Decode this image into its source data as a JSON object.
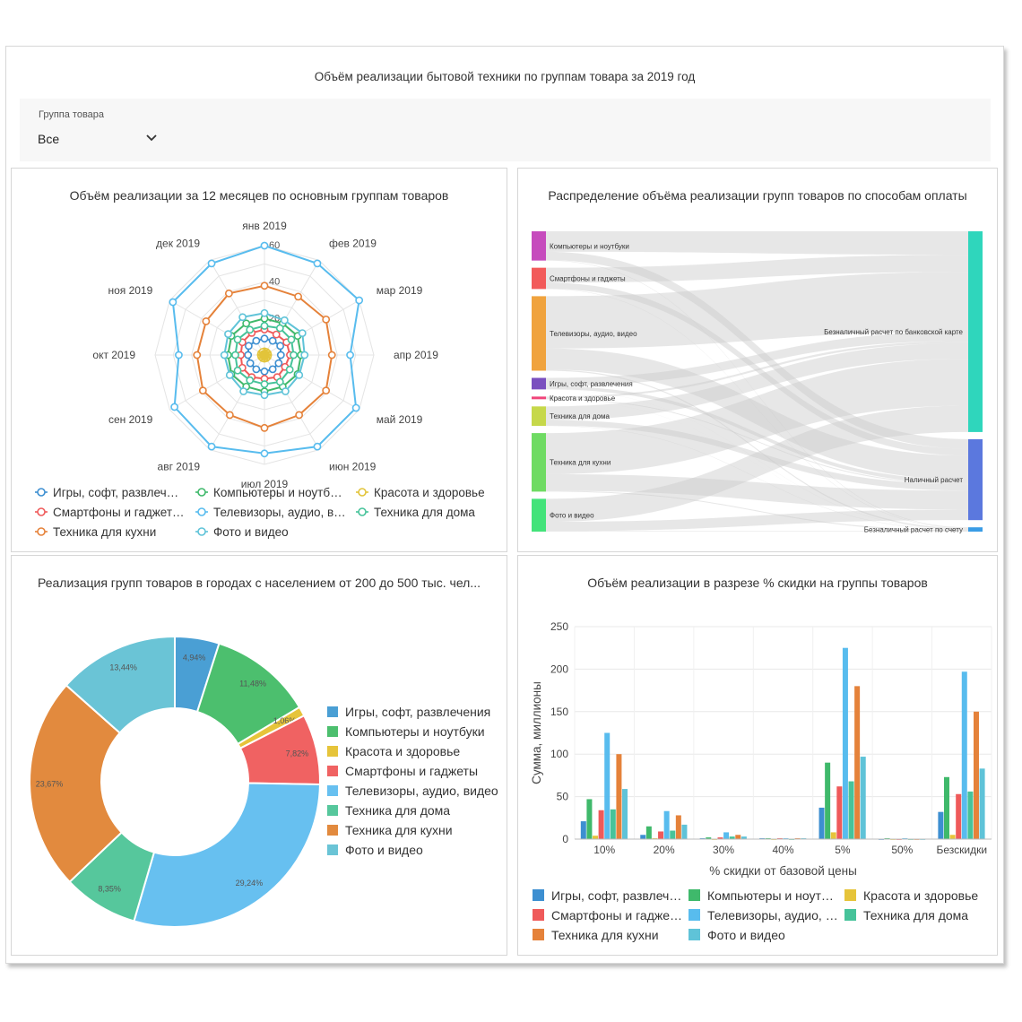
{
  "dashboard": {
    "title": "Объём реализации бытовой техники по группам товара за 2019 год"
  },
  "filter": {
    "label": "Группа товара",
    "value": "Все"
  },
  "colors": {
    "games": "#3d8fd1",
    "computers": "#3fb96b",
    "beauty": "#e2c43a",
    "smartphones": "#ef5a5a",
    "tv": "#58bcee",
    "home": "#46c39a",
    "kitchen": "#e5823a",
    "photo": "#5fc3d8"
  },
  "panels": {
    "radar": {
      "title": "Объём реализации за 12 месяцев по основным группам товаров"
    },
    "sankey": {
      "title": "Распределение объёма реализации групп товаров по способам оплаты"
    },
    "donut": {
      "title": "Реализация групп товаров в городах с населением от 200 до 500 тыс. чел..."
    },
    "bars": {
      "title": "Объём реализации в разрезе % скидки на группы товаров"
    }
  },
  "chart_data": [
    {
      "type": "radar",
      "title": "Объём реализации за 12 месяцев по основным группам товаров",
      "categories": [
        "янв 2019",
        "фев 2019",
        "мар 2019",
        "апр 2019",
        "май 2019",
        "июн 2019",
        "июл 2019",
        "авг 2019",
        "сен 2019",
        "окт 2019",
        "ноя 2019",
        "дек 2019"
      ],
      "axis_ticks": [
        "20",
        "40",
        "60"
      ],
      "rmax": 60,
      "series": [
        {
          "name": "Игры, софт, развлеч…",
          "color": "#3d8fd1",
          "values": [
            9,
            9,
            10,
            9,
            9,
            9,
            9,
            9,
            9,
            9,
            10,
            9
          ]
        },
        {
          "name": "Компьютеры и ноутб…",
          "color": "#3fb96b",
          "values": [
            20,
            20,
            21,
            20,
            21,
            20,
            20,
            20,
            21,
            20,
            21,
            20
          ]
        },
        {
          "name": "Красота и здоровье",
          "color": "#e2c43a",
          "values": [
            2,
            2,
            2,
            2,
            2,
            2,
            2,
            2,
            2,
            2,
            2,
            2
          ]
        },
        {
          "name": "Смартфоны и гаджет…",
          "color": "#ef5a5a",
          "values": [
            14,
            13,
            14,
            14,
            13,
            14,
            13,
            14,
            14,
            13,
            14,
            14
          ]
        },
        {
          "name": "Телевизоры, аудио, в…",
          "color": "#58bcee",
          "values": [
            60,
            58,
            60,
            47,
            58,
            58,
            54,
            58,
            57,
            47,
            58,
            58
          ]
        },
        {
          "name": "Техника для дома",
          "color": "#46c39a",
          "values": [
            16,
            17,
            17,
            16,
            16,
            17,
            16,
            16,
            17,
            16,
            17,
            16
          ]
        },
        {
          "name": "Техника для кухни",
          "color": "#e5823a",
          "values": [
            38,
            37,
            39,
            37,
            39,
            38,
            40,
            38,
            39,
            37,
            37,
            39
          ]
        },
        {
          "name": "Фото и видео",
          "color": "#5fc3d8",
          "values": [
            23,
            22,
            24,
            22,
            22,
            23,
            22,
            23,
            22,
            22,
            23,
            24
          ]
        }
      ]
    },
    {
      "type": "sankey",
      "title": "Распределение объёма реализации групп товаров по способам оплаты",
      "sources": [
        {
          "name": "Компьютеры и ноутбуки",
          "color": "#c64bbd",
          "value": 33
        },
        {
          "name": "Смартфоны и гаджеты",
          "color": "#f25a5a",
          "value": 24
        },
        {
          "name": "Телевизоры, аудио, видео",
          "color": "#f0a33e",
          "value": 84
        },
        {
          "name": "Игры, софт, развлечения",
          "color": "#7a4fbf",
          "value": 13
        },
        {
          "name": "Красота и здоровье",
          "color": "#f0457b",
          "value": 3
        },
        {
          "name": "Техника для дома",
          "color": "#c6d84a",
          "value": 22
        },
        {
          "name": "Техника для кухни",
          "color": "#6fdb63",
          "value": 66
        },
        {
          "name": "Фото и видео",
          "color": "#43e37a",
          "value": 37
        }
      ],
      "targets": [
        {
          "name": "Безналичный расчет по банковской карте",
          "color": "#2fd6bc",
          "value": 186
        },
        {
          "name": "Наличный расчет",
          "color": "#5b78de",
          "value": 75
        },
        {
          "name": "Безналичный расчет по счету",
          "color": "#3a9ce6",
          "value": 4
        }
      ]
    },
    {
      "type": "pie",
      "title": "Реализация групп товаров в городах с населением от 200 до 500 тыс. чел...",
      "labels": [
        "Игры, софт, развлечения",
        "Компьютеры и ноутбуки",
        "Красота и здоровье",
        "Смартфоны и гаджеты",
        "Телевизоры, аудио, видео",
        "Техника для дома",
        "Техника для кухни",
        "Фото и видео"
      ],
      "values": [
        4.94,
        11.48,
        1.06,
        7.82,
        29.24,
        8.35,
        23.67,
        13.44
      ],
      "value_labels": [
        "4,94%",
        "11,48%",
        "1,06%",
        "7,82%",
        "29,24%",
        "8,35%",
        "23,67%",
        "13,44%"
      ],
      "colors": [
        "#4a9fd4",
        "#4cbf6e",
        "#e6c43a",
        "#f06262",
        "#67c0f0",
        "#56c79c",
        "#e28a3e",
        "#6ac4d6"
      ]
    },
    {
      "type": "bar",
      "title": "Объём реализации в разрезе % скидки на группы товаров",
      "categories": [
        "10%",
        "20%",
        "30%",
        "40%",
        "5%",
        "50%",
        "Безскидки"
      ],
      "xlabel": "% скидки от базовой цены",
      "ylabel": "Сумма, миллионы",
      "ylim": [
        0,
        250
      ],
      "yticks": [
        "0",
        "50",
        "100",
        "150",
        "200",
        "250"
      ],
      "series": [
        {
          "name": "Игры, софт, развлеч…",
          "color": "#3d8fd1",
          "values": [
            21,
            5,
            1,
            1,
            37,
            0,
            32
          ]
        },
        {
          "name": "Компьютеры и ноут…",
          "color": "#3fb96b",
          "values": [
            47,
            15,
            2,
            1,
            90,
            1,
            73
          ]
        },
        {
          "name": "Красота и здоровье",
          "color": "#e6c43a",
          "values": [
            4,
            1,
            0,
            0,
            8,
            0,
            5
          ]
        },
        {
          "name": "Смартфоны и гадже…",
          "color": "#ef5a5a",
          "values": [
            34,
            9,
            2,
            1,
            62,
            0,
            53
          ]
        },
        {
          "name": "Телевизоры, аудио, …",
          "color": "#58bcee",
          "values": [
            125,
            33,
            8,
            1,
            225,
            1,
            197
          ]
        },
        {
          "name": "Техника для дома",
          "color": "#46c39a",
          "values": [
            35,
            10,
            3,
            0,
            68,
            0,
            56
          ]
        },
        {
          "name": "Техника для кухни",
          "color": "#e5823a",
          "values": [
            100,
            28,
            5,
            1,
            180,
            0,
            150
          ]
        },
        {
          "name": "Фото и видео",
          "color": "#5fc3d8",
          "values": [
            59,
            17,
            3,
            1,
            97,
            0,
            83
          ]
        }
      ]
    }
  ]
}
